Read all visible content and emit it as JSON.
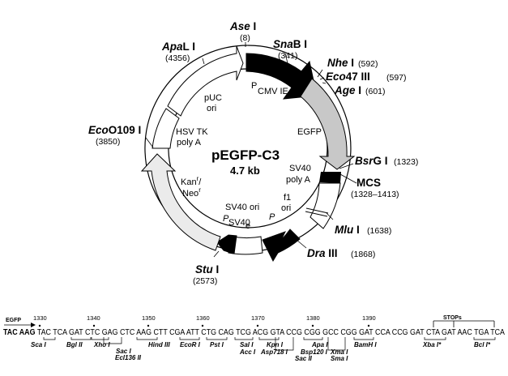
{
  "plasmid": {
    "name": "pEGFP-C3",
    "size": "4.7 kb"
  },
  "features": {
    "pcmv": "P",
    "pcmv_sub": "CMV IE",
    "egfp": "EGFP",
    "sv40_polya_1": "SV40",
    "sv40_polya_2": "poly A",
    "f1_1": "f1",
    "f1_2": "ori",
    "p_label": "P",
    "sv40_ori": "SV40 ori",
    "psv40_p": "P",
    "psv40_sub": "SV40",
    "psv40_e": "e",
    "kan_1": "Kan",
    "kan_sup": "r",
    "kan_slash": "/",
    "neo": "Neo",
    "neo_sup": "r",
    "hsv_1": "HSV TK",
    "hsv_2": "poly A",
    "puc_1": "pUC",
    "puc_2": "ori"
  },
  "enzymes": [
    {
      "italic": "Ase",
      "roman": " I",
      "pos": "(8)"
    },
    {
      "italic": "Sna",
      "roman": "B I",
      "pos": "(341)"
    },
    {
      "italic": "Nhe",
      "roman": " I",
      "pos": "(592)"
    },
    {
      "italic": "Eco",
      "roman": "47 III",
      "pos": "(597)"
    },
    {
      "italic": "Age",
      "roman": " I",
      "pos": "(601)"
    },
    {
      "italic": "Bsr",
      "roman": "G I",
      "pos": "(1323)"
    },
    {
      "italic": "",
      "roman": "MCS",
      "pos": "(1328–1413)"
    },
    {
      "italic": "Mlu",
      "roman": " I",
      "pos": "(1638)"
    },
    {
      "italic": "Dra",
      "roman": " III",
      "pos": "(1868)"
    },
    {
      "italic": "Stu",
      "roman": " I",
      "pos": "(2573)"
    },
    {
      "italic": "Eco",
      "roman": "O109 I",
      "pos": "(3850)"
    },
    {
      "italic": "Apa",
      "roman": "L I",
      "pos": "(4356)"
    }
  ],
  "mcs": {
    "egfp_label": "EGFP",
    "stops_label": "STOPs",
    "numbers": [
      "1330",
      "1340",
      "1350",
      "1360",
      "1370",
      "1380",
      "1390"
    ],
    "sequence_bold": "TAC AAG",
    "sequence": "TAC TCA GAT CTC GAG CTC AAG CTT CGA ATT CTG CAG TCG ACG GTA CCG CGG GCC CGG GAT CCA CCG GAT CTA GAT AAC TGA TCA",
    "sites": [
      "Sca I",
      "Bgl II",
      "Xho I",
      "Sac I",
      "Ecl136 II",
      "Hind III",
      "EcoR I",
      "Pst I",
      "Sal I",
      "Acc I",
      "Kpn I",
      "Asp718 I",
      "Sac II",
      "Apa I",
      "Bsp120 I",
      "Xma I",
      "Sma I",
      "BamH I",
      "Xba I*",
      "Bcl I*"
    ]
  }
}
